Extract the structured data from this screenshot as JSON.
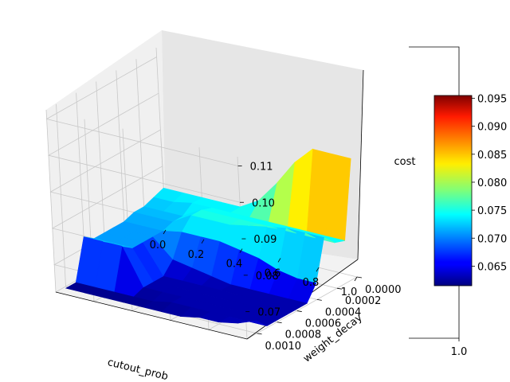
{
  "chart_data": {
    "type": "surface3d",
    "title": "",
    "xlabel": "cutout_prob",
    "ylabel": "weight_decay",
    "zlabel": "cost",
    "x_ticks": [
      "0.0",
      "0.2",
      "0.4",
      "0.6",
      "0.8",
      "1.0"
    ],
    "y_ticks": [
      "0.0000",
      "0.0002",
      "0.0004",
      "0.0006",
      "0.0008",
      "0.0010"
    ],
    "z_ticks": [
      "0.07",
      "0.08",
      "0.09",
      "0.10",
      "0.11"
    ],
    "xlim": [
      0.0,
      1.0
    ],
    "ylim": [
      0.0,
      0.0011
    ],
    "zlim": [
      0.0625,
      0.1125
    ],
    "colormap": "jet",
    "colorbar": {
      "ticks": [
        "0.065",
        "0.070",
        "0.075",
        "0.080",
        "0.085",
        "0.090",
        "0.095"
      ],
      "range": [
        0.0615,
        0.0955
      ],
      "extra_axis_label": "1.0"
    },
    "grid": true,
    "surface": {
      "x": [
        0.0,
        0.1,
        0.2,
        0.3,
        0.4,
        0.5,
        0.6,
        0.7,
        0.8,
        0.9,
        1.0
      ],
      "y": [
        0.0,
        0.0001,
        0.0002,
        0.0003,
        0.0004,
        0.0005,
        0.0006,
        0.0007,
        0.0008,
        0.0009,
        0.001
      ],
      "z": [
        [
          0.074,
          0.074,
          0.074,
          0.074,
          0.074,
          0.077,
          0.083,
          0.09,
          0.095,
          0.095,
          0.095
        ],
        [
          0.073,
          0.073,
          0.074,
          0.074,
          0.074,
          0.074,
          0.074,
          0.074,
          0.074,
          0.074,
          0.074
        ],
        [
          0.072,
          0.072,
          0.072,
          0.075,
          0.075,
          0.075,
          0.075,
          0.075,
          0.075,
          0.075,
          0.075
        ],
        [
          0.072,
          0.072,
          0.072,
          0.075,
          0.075,
          0.075,
          0.076,
          0.077,
          0.078,
          0.078,
          0.078
        ],
        [
          0.071,
          0.071,
          0.071,
          0.072,
          0.072,
          0.072,
          0.071,
          0.07,
          0.068,
          0.067,
          0.067
        ],
        [
          0.071,
          0.071,
          0.071,
          0.066,
          0.065,
          0.064,
          0.063,
          0.063,
          0.063,
          0.063,
          0.063
        ],
        [
          0.071,
          0.071,
          0.071,
          0.063,
          0.063,
          0.063,
          0.063,
          0.063,
          0.063,
          0.063,
          0.063
        ],
        [
          0.071,
          0.071,
          0.071,
          0.063,
          0.063,
          0.063,
          0.063,
          0.063,
          0.063,
          0.063,
          0.063
        ],
        [
          0.073,
          0.073,
          0.073,
          0.063,
          0.063,
          0.063,
          0.063,
          0.063,
          0.063,
          0.063,
          0.063
        ],
        [
          0.062,
          0.062,
          0.062,
          0.062,
          0.062,
          0.063,
          0.063,
          0.063,
          0.063,
          0.063,
          0.063
        ],
        [
          0.062,
          0.062,
          0.062,
          0.062,
          0.062,
          0.062,
          0.062,
          0.063,
          0.063,
          0.064,
          0.066
        ]
      ]
    }
  }
}
